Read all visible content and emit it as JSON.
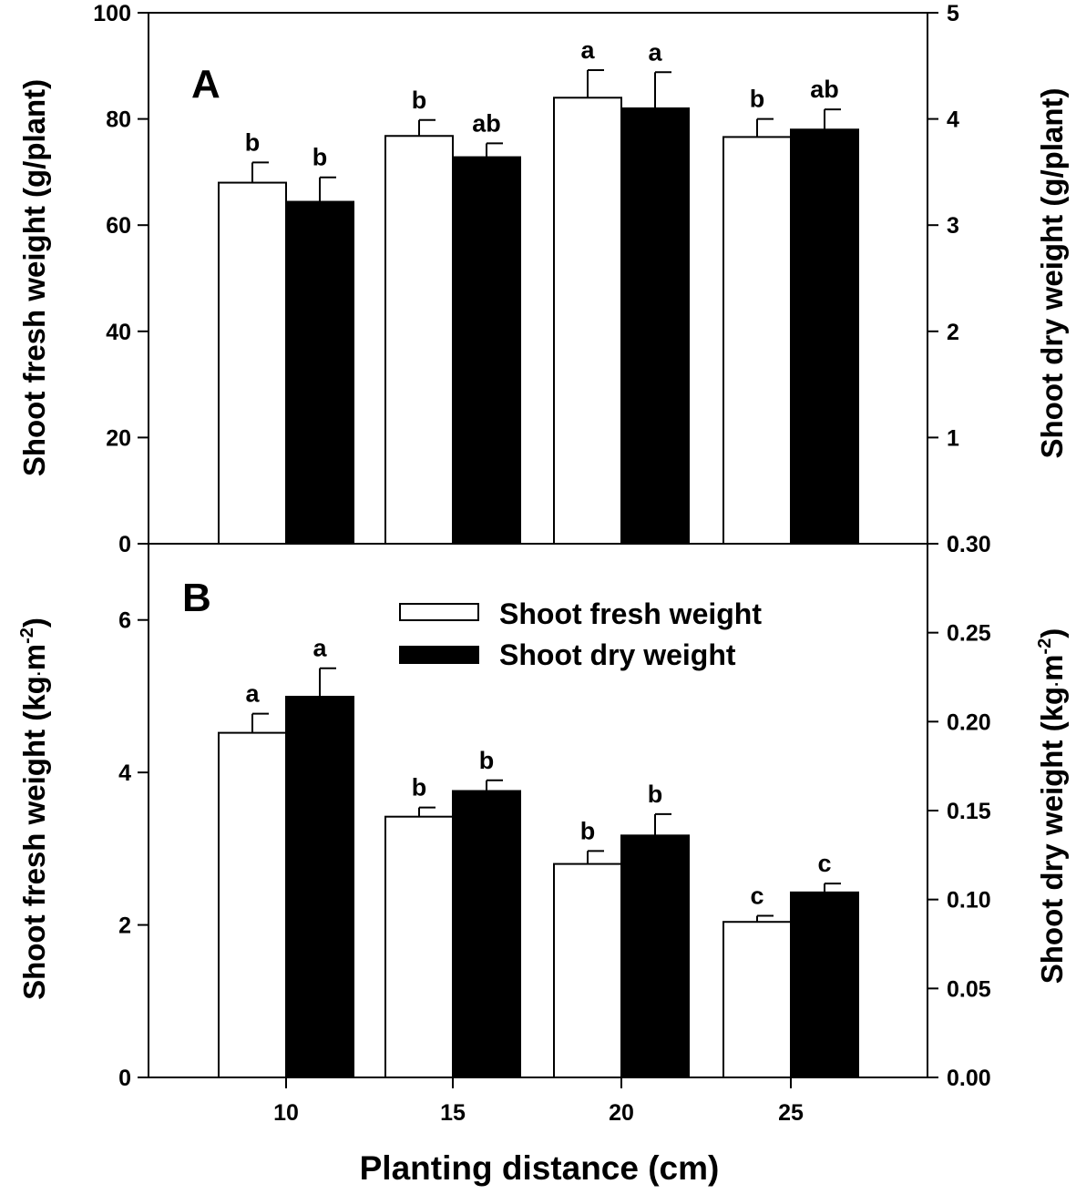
{
  "chart_data": [
    {
      "type": "bar",
      "panel_label": "A",
      "categories": [
        "10",
        "15",
        "20",
        "25"
      ],
      "xlabel": "Planting distance (cm)",
      "y_left": {
        "label": "Shoot fresh weight (g/plant)",
        "lim": [
          0,
          100
        ],
        "ticks": [
          "0",
          "20",
          "40",
          "60",
          "80",
          "100"
        ]
      },
      "y_right": {
        "label": "Shoot dry weight (g/plant)",
        "lim": [
          0,
          5
        ],
        "ticks": [
          "0",
          "1",
          "2",
          "3",
          "4",
          "5"
        ]
      },
      "series": [
        {
          "name": "Shoot fresh weight",
          "axis": "left",
          "fill": "#ffffff",
          "values": [
            68,
            76.8,
            84,
            76.6
          ],
          "errors": [
            3.8,
            3,
            5.2,
            3.4
          ],
          "letters": [
            "b",
            "b",
            "a",
            "b"
          ]
        },
        {
          "name": "Shoot dry weight",
          "axis": "right",
          "fill": "#000000",
          "values": [
            3.22,
            3.64,
            4.1,
            3.9
          ],
          "errors": [
            0.23,
            0.13,
            0.34,
            0.19
          ],
          "letters": [
            "b",
            "ab",
            "a",
            "ab"
          ]
        }
      ]
    },
    {
      "type": "bar",
      "panel_label": "B",
      "categories": [
        "10",
        "15",
        "20",
        "25"
      ],
      "xlabel": "Planting distance (cm)",
      "y_left": {
        "label": "Shoot fresh weight (kg·m⁻²)",
        "lim": [
          0,
          7
        ],
        "ticks": [
          "0",
          "2",
          "4",
          "6"
        ]
      },
      "y_right": {
        "label": "Shoot dry weight (kg·m⁻²)",
        "lim": [
          0,
          0.3
        ],
        "ticks": [
          "0.00",
          "0.05",
          "0.10",
          "0.15",
          "0.20",
          "0.25",
          "0.30"
        ]
      },
      "legend": {
        "position": "top-center",
        "entries": [
          "Shoot fresh weight",
          "Shoot dry weight"
        ]
      },
      "series": [
        {
          "name": "Shoot fresh weight",
          "axis": "left",
          "fill": "#ffffff",
          "values": [
            4.52,
            3.42,
            2.8,
            2.04
          ],
          "errors": [
            0.25,
            0.12,
            0.17,
            0.08
          ],
          "letters": [
            "a",
            "b",
            "b",
            "c"
          ]
        },
        {
          "name": "Shoot dry weight",
          "axis": "right",
          "fill": "#000000",
          "values": [
            0.214,
            0.161,
            0.136,
            0.104
          ],
          "errors": [
            0.016,
            0.006,
            0.012,
            0.005
          ],
          "letters": [
            "a",
            "b",
            "b",
            "c"
          ]
        }
      ]
    }
  ],
  "labels": {
    "panel_a": "A",
    "panel_b": "B",
    "xaxis_title": "Planting distance (cm)",
    "x_ticks": [
      "10",
      "15",
      "20",
      "25"
    ],
    "a_left_title": "Shoot fresh weight (g/plant)",
    "a_right_title": "Shoot dry weight (g/plant)",
    "b_left_title_main": "Shoot fresh weight (kg",
    "b_left_title_dot": "·",
    "b_left_title_m": "m",
    "b_left_title_exp": "-2",
    "b_left_title_close": ")",
    "b_right_title_main": "Shoot dry weight (kg",
    "b_right_title_dot": "·",
    "b_right_title_m": "m",
    "b_right_title_exp": "-2",
    "b_right_title_close": ")",
    "legend_fresh": "Shoot fresh weight",
    "legend_dry": "Shoot dry weight"
  }
}
